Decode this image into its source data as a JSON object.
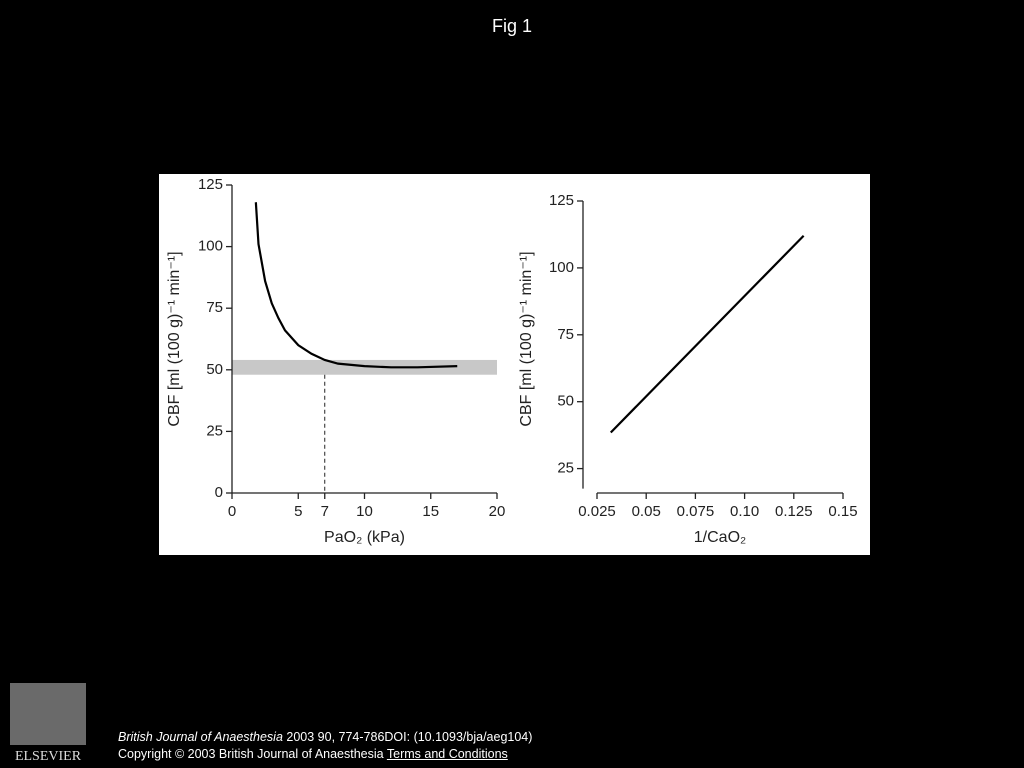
{
  "title": "Fig 1",
  "chart_data": [
    {
      "type": "line",
      "ylabel": "CBF [ml (100 g)⁻¹ min⁻¹]",
      "xlabel": "PaO₂ (kPa)",
      "x": [
        1.8,
        2,
        2.5,
        3,
        3.5,
        4,
        5,
        6,
        7,
        8,
        10,
        12,
        14,
        17
      ],
      "series": [
        {
          "color": "#000000",
          "values": [
            118,
            101,
            86,
            77,
            71,
            66,
            60,
            56.5,
            54,
            52.5,
            51.5,
            51,
            51,
            51.5
          ]
        }
      ],
      "band": [
        48,
        54
      ],
      "band_color": "#c8c8c8",
      "marker_x": 7,
      "xlim": [
        0,
        20
      ],
      "xticks": [
        0,
        5,
        7,
        10,
        15,
        20
      ],
      "ylim": [
        0,
        125
      ],
      "yticks": [
        0,
        25,
        50,
        75,
        100,
        125
      ]
    },
    {
      "type": "line",
      "ylabel": "CBF [ml (100 g)⁻¹ min⁻¹]",
      "xlabel": "1/CaO₂",
      "x": [
        0.032,
        0.13
      ],
      "series": [
        {
          "color": "#000000",
          "values": [
            38.5,
            112
          ]
        }
      ],
      "xlim": [
        0.025,
        0.15
      ],
      "xticks": [
        0.025,
        0.05,
        0.075,
        {
          "value": 0.1,
          "label": "0.10"
        },
        0.125,
        0.15
      ],
      "ylim": [
        17,
        125
      ],
      "yticks": [
        25,
        50,
        75,
        100,
        125
      ]
    }
  ],
  "logo_text": "ELSEVIER",
  "footer": {
    "journal": "British Journal of Anaesthesia",
    "citation": "2003 90, 774-786DOI: (10.1093/bja/aeg104)",
    "copyright": "Copyright © 2003 British Journal of Anaesthesia",
    "link": "Terms and Conditions"
  }
}
